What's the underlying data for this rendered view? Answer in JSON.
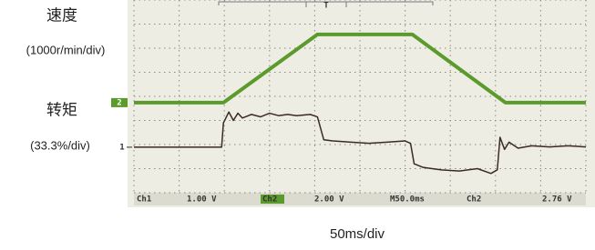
{
  "chart_data": {
    "type": "line",
    "xlabel": "50ms/div",
    "xlim": [
      0,
      500
    ],
    "ylim": [
      0,
      8
    ],
    "xticks": [
      0,
      50,
      100,
      150,
      200,
      250,
      300,
      350,
      400,
      450,
      500
    ],
    "yticks": [
      0,
      1,
      2,
      3,
      4,
      5,
      6,
      7,
      8
    ],
    "grid": true,
    "trigger_label": "T",
    "status": [
      "Ch1",
      "1.00 V",
      "Ch2",
      "2.00 V",
      "M50.0ms",
      "Ch2",
      "2.76 V"
    ],
    "series": [
      {
        "name": "速度",
        "unit": "(1000r/min/div)",
        "channel": "2",
        "color": "#5b9a2c",
        "x": [
          0,
          99,
          203,
          308,
          411,
          500
        ],
        "values": [
          3.74,
          3.74,
          6.57,
          6.57,
          3.74,
          3.74
        ]
      },
      {
        "name": "转矩",
        "unit": "(33.3%/div)",
        "channel": "1",
        "color": "#3b2a22",
        "x": [
          0,
          97,
          99,
          105,
          110,
          115,
          120,
          130,
          140,
          150,
          160,
          170,
          180,
          195,
          203,
          210,
          220,
          240,
          260,
          280,
          300,
          306,
          310,
          320,
          340,
          360,
          380,
          395,
          402,
          405,
          410,
          415,
          425,
          440,
          460,
          480,
          500
        ],
        "values": [
          1.89,
          1.89,
          2.9,
          3.35,
          3.0,
          3.3,
          3.1,
          3.25,
          3.15,
          3.3,
          3.2,
          3.25,
          3.2,
          3.25,
          3.15,
          2.2,
          2.15,
          2.1,
          2.05,
          2.1,
          2.15,
          2.05,
          1.2,
          1.05,
          0.95,
          0.9,
          1.0,
          0.8,
          0.95,
          2.3,
          1.8,
          2.1,
          1.85,
          1.95,
          1.9,
          1.95,
          1.9
        ]
      }
    ]
  }
}
